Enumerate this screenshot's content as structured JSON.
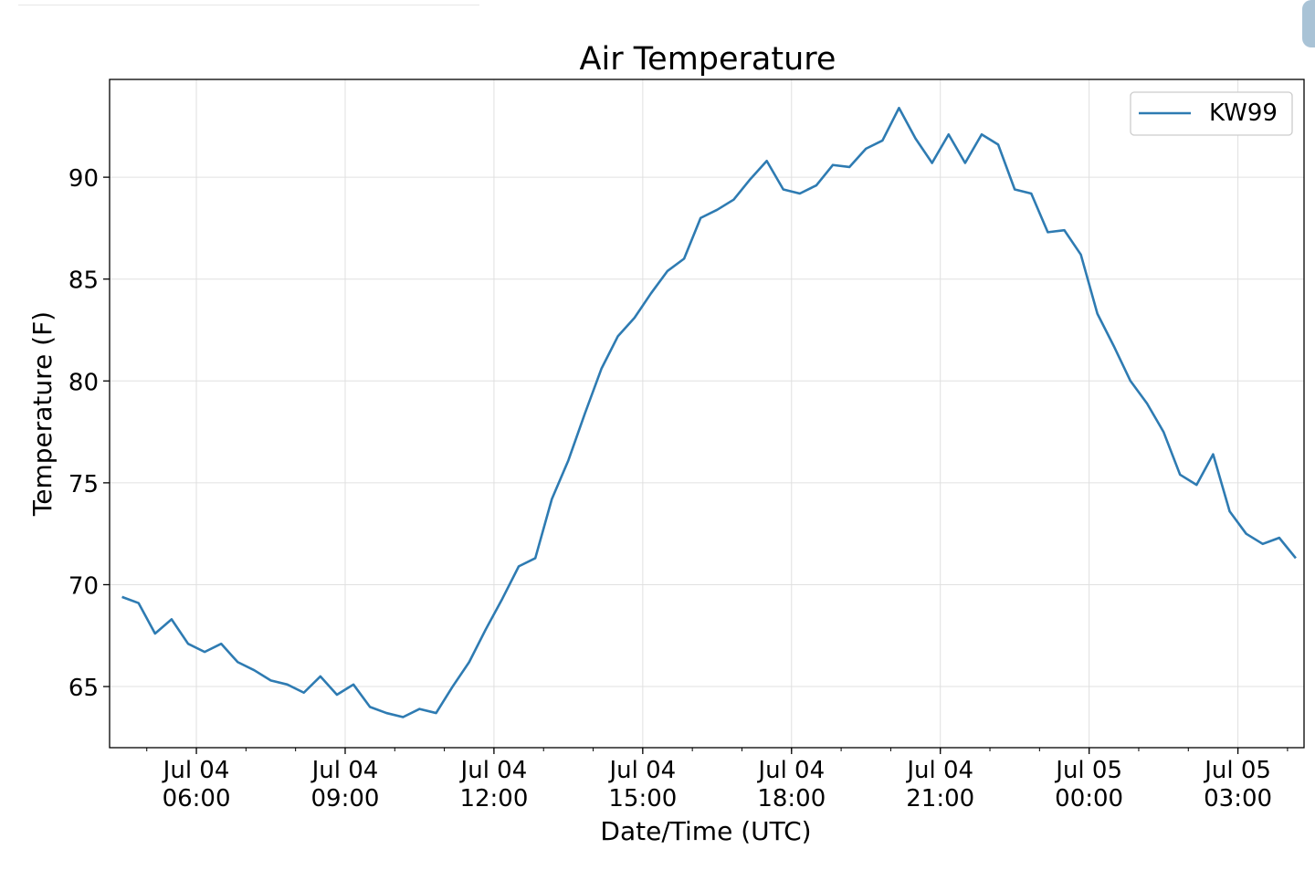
{
  "chart_data": {
    "type": "line",
    "title": "Air Temperature",
    "xlabel": "Date/Time (UTC)",
    "ylabel": "Temperature (F)",
    "x_axis": {
      "type": "time",
      "range": [
        "2019-07-04T04:15",
        "2019-07-05T04:20"
      ],
      "tick_labels": [
        {
          "time": "2019-07-04T06:00",
          "line1": "Jul 04",
          "line2": "06:00"
        },
        {
          "time": "2019-07-04T09:00",
          "line1": "Jul 04",
          "line2": "09:00"
        },
        {
          "time": "2019-07-04T12:00",
          "line1": "Jul 04",
          "line2": "12:00"
        },
        {
          "time": "2019-07-04T15:00",
          "line1": "Jul 04",
          "line2": "15:00"
        },
        {
          "time": "2019-07-04T18:00",
          "line1": "Jul 04",
          "line2": "18:00"
        },
        {
          "time": "2019-07-04T21:00",
          "line1": "Jul 04",
          "line2": "21:00"
        },
        {
          "time": "2019-07-05T00:00",
          "line1": "Jul 05",
          "line2": "00:00"
        },
        {
          "time": "2019-07-05T03:00",
          "line1": "Jul 05",
          "line2": "03:00"
        }
      ]
    },
    "y_axis": {
      "range": [
        62.0,
        94.8
      ],
      "ticks": [
        65,
        70,
        75,
        80,
        85,
        90
      ]
    },
    "grid": true,
    "legend_position": "top-right",
    "series": [
      {
        "name": "KW99",
        "color": "#2e7bb2",
        "points": [
          [
            "2019-07-04T04:30",
            69.4
          ],
          [
            "2019-07-04T04:50",
            69.1
          ],
          [
            "2019-07-04T05:10",
            67.6
          ],
          [
            "2019-07-04T05:30",
            68.3
          ],
          [
            "2019-07-04T05:50",
            67.1
          ],
          [
            "2019-07-04T06:10",
            66.7
          ],
          [
            "2019-07-04T06:30",
            67.1
          ],
          [
            "2019-07-04T06:50",
            66.2
          ],
          [
            "2019-07-04T07:10",
            65.8
          ],
          [
            "2019-07-04T07:30",
            65.3
          ],
          [
            "2019-07-04T07:50",
            65.1
          ],
          [
            "2019-07-04T08:10",
            64.7
          ],
          [
            "2019-07-04T08:30",
            65.5
          ],
          [
            "2019-07-04T08:50",
            64.6
          ],
          [
            "2019-07-04T09:10",
            65.1
          ],
          [
            "2019-07-04T09:30",
            64.0
          ],
          [
            "2019-07-04T09:50",
            63.7
          ],
          [
            "2019-07-04T10:10",
            63.5
          ],
          [
            "2019-07-04T10:30",
            63.9
          ],
          [
            "2019-07-04T10:50",
            63.7
          ],
          [
            "2019-07-04T11:10",
            65.0
          ],
          [
            "2019-07-04T11:30",
            66.2
          ],
          [
            "2019-07-04T11:50",
            67.8
          ],
          [
            "2019-07-04T12:10",
            69.3
          ],
          [
            "2019-07-04T12:30",
            70.9
          ],
          [
            "2019-07-04T12:50",
            71.3
          ],
          [
            "2019-07-04T13:10",
            74.2
          ],
          [
            "2019-07-04T13:30",
            76.1
          ],
          [
            "2019-07-04T13:50",
            78.4
          ],
          [
            "2019-07-04T14:10",
            80.6
          ],
          [
            "2019-07-04T14:30",
            82.2
          ],
          [
            "2019-07-04T14:50",
            83.1
          ],
          [
            "2019-07-04T15:10",
            84.3
          ],
          [
            "2019-07-04T15:30",
            85.4
          ],
          [
            "2019-07-04T15:50",
            86.0
          ],
          [
            "2019-07-04T16:10",
            88.0
          ],
          [
            "2019-07-04T16:30",
            88.4
          ],
          [
            "2019-07-04T16:50",
            88.9
          ],
          [
            "2019-07-04T17:10",
            89.9
          ],
          [
            "2019-07-04T17:30",
            90.8
          ],
          [
            "2019-07-04T17:50",
            89.4
          ],
          [
            "2019-07-04T18:10",
            89.2
          ],
          [
            "2019-07-04T18:30",
            89.6
          ],
          [
            "2019-07-04T18:50",
            90.6
          ],
          [
            "2019-07-04T19:10",
            90.5
          ],
          [
            "2019-07-04T19:30",
            91.4
          ],
          [
            "2019-07-04T19:50",
            91.8
          ],
          [
            "2019-07-04T20:10",
            93.4
          ],
          [
            "2019-07-04T20:30",
            91.9
          ],
          [
            "2019-07-04T20:50",
            90.7
          ],
          [
            "2019-07-04T21:10",
            92.1
          ],
          [
            "2019-07-04T21:30",
            90.7
          ],
          [
            "2019-07-04T21:50",
            92.1
          ],
          [
            "2019-07-04T22:10",
            91.6
          ],
          [
            "2019-07-04T22:30",
            89.4
          ],
          [
            "2019-07-04T22:50",
            89.2
          ],
          [
            "2019-07-04T23:10",
            87.3
          ],
          [
            "2019-07-04T23:30",
            87.4
          ],
          [
            "2019-07-04T23:50",
            86.2
          ],
          [
            "2019-07-05T00:10",
            83.3
          ],
          [
            "2019-07-05T00:30",
            81.7
          ],
          [
            "2019-07-05T00:50",
            80.0
          ],
          [
            "2019-07-05T01:10",
            78.9
          ],
          [
            "2019-07-05T01:30",
            77.5
          ],
          [
            "2019-07-05T01:50",
            75.4
          ],
          [
            "2019-07-05T02:10",
            74.9
          ],
          [
            "2019-07-05T02:30",
            76.4
          ],
          [
            "2019-07-05T02:50",
            73.6
          ],
          [
            "2019-07-05T03:10",
            72.5
          ],
          [
            "2019-07-05T03:30",
            72.0
          ],
          [
            "2019-07-05T03:50",
            72.3
          ],
          [
            "2019-07-05T04:10",
            71.3
          ]
        ]
      }
    ]
  }
}
